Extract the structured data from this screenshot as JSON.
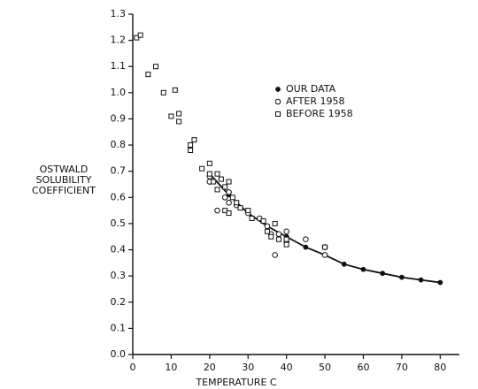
{
  "chart_data": {
    "type": "scatter",
    "x_label": "TEMPERATURE  C",
    "y_label": [
      "OSTWALD",
      "SOLUBILITY",
      "COEFFICIENT"
    ],
    "xlim": [
      0,
      85
    ],
    "ylim": [
      0,
      1.3
    ],
    "xticks": [
      0,
      10,
      20,
      30,
      40,
      50,
      60,
      70,
      80
    ],
    "yticks": [
      {
        "value": 0,
        "label": "0.0"
      },
      0.1,
      0.2,
      0.3,
      0.4,
      0.5,
      0.6,
      0.7,
      0.8,
      0.9,
      {
        "value": 1,
        "label": "1.0"
      },
      1.1,
      1.2,
      1.3
    ],
    "series": [
      {
        "name": "OUR DATA",
        "color": "#111111",
        "marker": "filled-circle",
        "line": true,
        "x": [
          20,
          25,
          30,
          35,
          40,
          45,
          50,
          55,
          60,
          65,
          70,
          75,
          80
        ],
        "values": [
          0.69,
          0.61,
          0.54,
          0.49,
          0.45,
          0.41,
          0.38,
          0.345,
          0.325,
          0.31,
          0.295,
          0.285,
          0.275
        ]
      },
      {
        "name": "AFTER 1958",
        "color": "#111111",
        "marker": "circle",
        "line": false,
        "x": [
          20,
          20,
          22,
          24,
          25,
          25,
          27,
          30,
          33,
          35,
          36,
          37,
          38,
          40,
          40,
          45,
          50,
          50
        ],
        "values": [
          0.66,
          0.68,
          0.55,
          0.6,
          0.62,
          0.58,
          0.57,
          0.54,
          0.52,
          0.49,
          0.46,
          0.38,
          0.46,
          0.47,
          0.43,
          0.44,
          0.41,
          0.38
        ]
      },
      {
        "name": "BEFORE 1958",
        "color": "#111111",
        "marker": "square",
        "line": false,
        "x": [
          1,
          2,
          4,
          6,
          8,
          10,
          11,
          12,
          12,
          15,
          15,
          16,
          18,
          20,
          20,
          21,
          22,
          22,
          23,
          24,
          24,
          25,
          25,
          26,
          27,
          28,
          30,
          31,
          34,
          35,
          36,
          37,
          38,
          40,
          40,
          50
        ],
        "values": [
          1.21,
          1.22,
          1.07,
          1.1,
          1.0,
          0.91,
          1.01,
          0.92,
          0.89,
          0.78,
          0.8,
          0.82,
          0.71,
          0.73,
          0.69,
          0.66,
          0.69,
          0.63,
          0.67,
          0.64,
          0.55,
          0.54,
          0.66,
          0.6,
          0.58,
          0.56,
          0.55,
          0.52,
          0.51,
          0.47,
          0.45,
          0.5,
          0.44,
          0.44,
          0.42,
          0.41
        ]
      }
    ]
  }
}
